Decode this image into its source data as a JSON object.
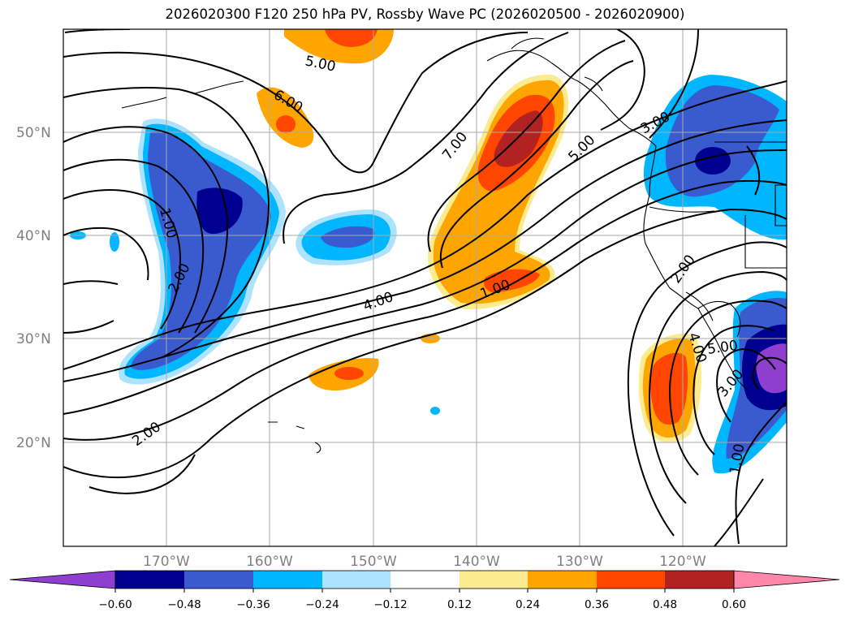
{
  "title": "2026020300 F120 250 hPa PV, Rossby Wave PC (2026020500 - 2026020900)",
  "axes": {
    "lat_ticks": [
      "50°N",
      "40°N",
      "30°N",
      "20°N"
    ],
    "lon_ticks": [
      "170°W",
      "160°W",
      "150°W",
      "140°W",
      "130°W",
      "120°W"
    ]
  },
  "contour_labels": [
    "5.00",
    "6.00",
    "7.00",
    "5.00",
    "3.00",
    "1.00",
    "2.00",
    "4.00",
    "1.00",
    "2.00",
    "2.00",
    "4.00",
    "5.00",
    "3.00",
    "1.00"
  ],
  "colorbar": {
    "colors": [
      "#8f3fd0",
      "#000090",
      "#3a5bd0",
      "#00b7ff",
      "#ade3ff",
      "#ffffff",
      "#fdec8f",
      "#ffa500",
      "#ff4500",
      "#b22222",
      "#ff88aa"
    ],
    "tick_labels": [
      "−0.60",
      "−0.48",
      "−0.36",
      "−0.24",
      "−0.12",
      "0.12",
      "0.24",
      "0.36",
      "0.48",
      "0.60"
    ]
  }
}
